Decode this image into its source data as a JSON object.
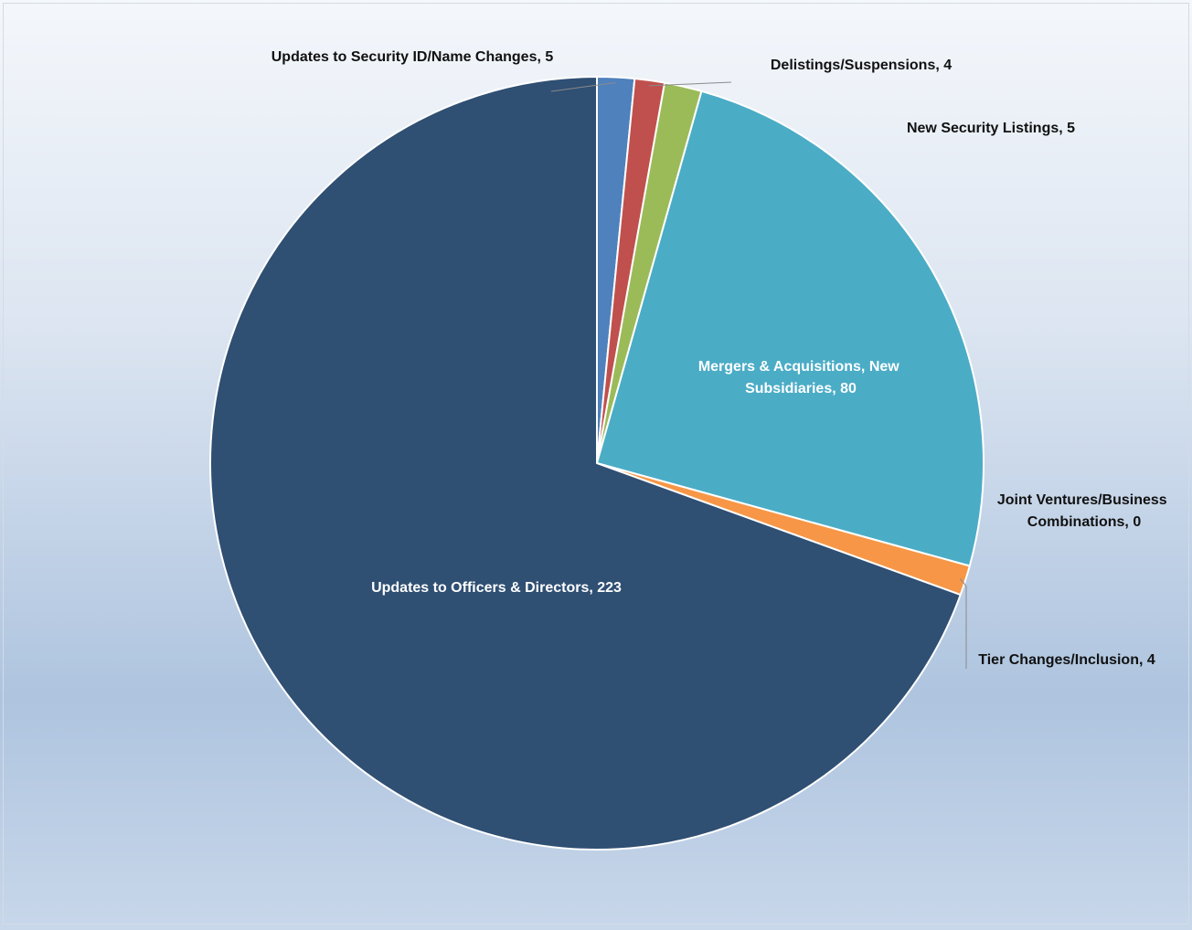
{
  "chart_data": {
    "type": "pie",
    "title": "",
    "start_angle_deg": 0,
    "direction": "clockwise",
    "legend": "none",
    "slices": [
      {
        "name": "Updates to Security ID/Name Changes",
        "value": 5,
        "color": "#4f81bd",
        "label": "Updates to Security ID/Name Changes, 5"
      },
      {
        "name": "Delistings/Suspensions",
        "value": 4,
        "color": "#c0504d",
        "label": "Delistings/Suspensions, 4"
      },
      {
        "name": "New Security Listings",
        "value": 5,
        "color": "#9bbb59",
        "label": "New Security Listings, 5"
      },
      {
        "name": "Mergers & Acquisitions, New Subsidiaries",
        "value": 80,
        "color": "#4bacc6",
        "label_lines": [
          "Mergers & Acquisitions, New",
          "Subsidiaries, 80"
        ]
      },
      {
        "name": "Joint Ventures/Business Combinations",
        "value": 0,
        "color": "#8064a2",
        "label_lines": [
          "Joint Ventures/Business",
          "Combinations, 0"
        ]
      },
      {
        "name": "Tier Changes/Inclusion",
        "value": 4,
        "color": "#f79646",
        "label": "Tier Changes/Inclusion, 4"
      },
      {
        "name": "Updates to Officers & Directors",
        "value": 223,
        "color": "#2f4f73",
        "label": "Updates to Officers & Directors, 223"
      }
    ]
  }
}
